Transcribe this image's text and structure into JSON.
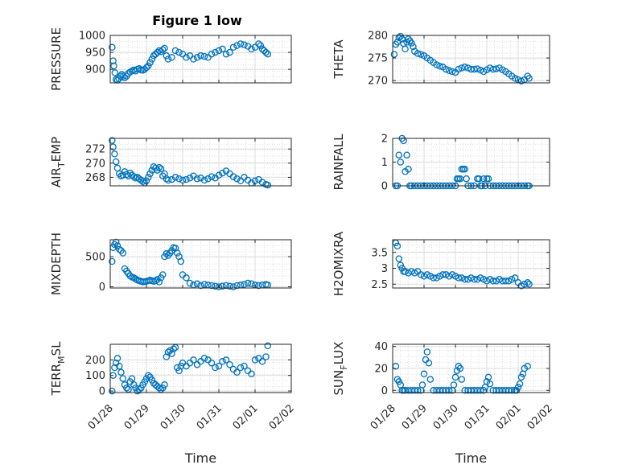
{
  "figure": {
    "title": "Figure 1 low"
  },
  "chart_data": [
    {
      "type": "scatter",
      "title": "Figure 1 low",
      "ylabel": "PRESSURE",
      "xlabel": "",
      "ylim": [
        860,
        1000
      ],
      "yticks": [
        900,
        950,
        1000
      ],
      "xlim": [
        0,
        5
      ],
      "xtick_labels": [],
      "grid": true,
      "marker": "open-circle",
      "color": "#0072BD",
      "x": [
        0.05,
        0.08,
        0.1,
        0.13,
        0.16,
        0.2,
        0.24,
        0.28,
        0.32,
        0.36,
        0.4,
        0.45,
        0.5,
        0.55,
        0.6,
        0.65,
        0.7,
        0.75,
        0.8,
        0.85,
        0.9,
        0.95,
        1.0,
        1.05,
        1.1,
        1.15,
        1.2,
        1.25,
        1.3,
        1.35,
        1.4,
        1.45,
        1.5,
        1.55,
        1.6,
        1.7,
        1.8,
        1.9,
        2.0,
        2.1,
        2.2,
        2.3,
        2.4,
        2.5,
        2.6,
        2.7,
        2.8,
        2.9,
        3.0,
        3.1,
        3.2,
        3.3,
        3.4,
        3.5,
        3.6,
        3.7,
        3.8,
        3.9,
        4.0,
        4.1,
        4.15,
        4.2,
        4.25,
        4.3,
        4.35
      ],
      "y": [
        965,
        925,
        910,
        890,
        870,
        868,
        872,
        880,
        885,
        880,
        875,
        880,
        888,
        892,
        895,
        898,
        895,
        900,
        902,
        898,
        897,
        900,
        905,
        910,
        920,
        930,
        940,
        945,
        950,
        955,
        952,
        958,
        962,
        940,
        930,
        935,
        955,
        950,
        945,
        935,
        940,
        930,
        935,
        940,
        938,
        935,
        945,
        950,
        955,
        960,
        945,
        950,
        965,
        970,
        975,
        972,
        968,
        960,
        965,
        975,
        970,
        960,
        955,
        950,
        945
      ]
    },
    {
      "type": "scatter",
      "ylabel": "THETA",
      "xlabel": "",
      "ylim": [
        269.5,
        280
      ],
      "yticks": [
        270,
        275,
        280
      ],
      "xlim": [
        0,
        5
      ],
      "xtick_labels": [],
      "grid": true,
      "marker": "open-circle",
      "color": "#0072BD",
      "x": [
        0.05,
        0.1,
        0.15,
        0.2,
        0.25,
        0.3,
        0.35,
        0.4,
        0.45,
        0.5,
        0.55,
        0.6,
        0.65,
        0.7,
        0.8,
        0.9,
        1.0,
        1.1,
        1.2,
        1.3,
        1.4,
        1.5,
        1.6,
        1.7,
        1.8,
        1.9,
        2.0,
        2.1,
        2.2,
        2.3,
        2.4,
        2.5,
        2.6,
        2.7,
        2.8,
        2.9,
        3.0,
        3.1,
        3.2,
        3.3,
        3.4,
        3.5,
        3.6,
        3.7,
        3.8,
        3.9,
        4.0,
        4.1,
        4.2,
        4.3,
        4.35
      ],
      "y": [
        275.8,
        278,
        278.5,
        279.5,
        279.8,
        279.2,
        278.2,
        277,
        278.5,
        279.2,
        278.8,
        278.3,
        277.5,
        276.5,
        276,
        275.8,
        275.5,
        275,
        274.5,
        274,
        273.5,
        273.2,
        273,
        272.5,
        272.2,
        272,
        271.8,
        272.5,
        272.8,
        273,
        272.8,
        272.5,
        272.5,
        272.6,
        272.3,
        272,
        272.4,
        272.8,
        272.5,
        272.6,
        272.8,
        272.4,
        272,
        271.5,
        271,
        270.5,
        270.2,
        269.9,
        270.2,
        271,
        270.5
      ]
    },
    {
      "type": "scatter",
      "ylabel": "AIR_TEMP",
      "xlabel": "",
      "ylim": [
        266.8,
        273.5
      ],
      "yticks": [
        268,
        270,
        272
      ],
      "xlim": [
        0,
        5
      ],
      "xtick_labels": [],
      "grid": true,
      "marker": "open-circle",
      "color": "#0072BD",
      "x": [
        0.05,
        0.08,
        0.12,
        0.16,
        0.2,
        0.25,
        0.3,
        0.35,
        0.4,
        0.45,
        0.5,
        0.55,
        0.6,
        0.65,
        0.7,
        0.75,
        0.8,
        0.85,
        0.9,
        0.95,
        1.0,
        1.05,
        1.1,
        1.15,
        1.2,
        1.25,
        1.3,
        1.35,
        1.4,
        1.45,
        1.5,
        1.55,
        1.6,
        1.7,
        1.8,
        1.9,
        2.0,
        2.1,
        2.2,
        2.3,
        2.4,
        2.5,
        2.6,
        2.7,
        2.8,
        2.9,
        3.0,
        3.1,
        3.2,
        3.3,
        3.4,
        3.5,
        3.6,
        3.7,
        3.8,
        3.9,
        4.0,
        4.1,
        4.2,
        4.3,
        4.35
      ],
      "y": [
        273.2,
        272.3,
        271.3,
        270.2,
        269.3,
        268.5,
        268.2,
        268.3,
        268.8,
        268.4,
        268.2,
        268.6,
        268.3,
        268.1,
        267.9,
        268.0,
        267.8,
        267.6,
        267.4,
        267.2,
        267.5,
        268.0,
        268.5,
        269.0,
        269.5,
        269.3,
        269.0,
        269.4,
        269.2,
        268.2,
        268.5,
        267.8,
        267.6,
        267.7,
        268.0,
        267.8,
        267.6,
        267.7,
        267.9,
        268.2,
        267.8,
        267.9,
        267.6,
        267.8,
        268.1,
        267.9,
        268.3,
        268.6,
        268.9,
        268.5,
        268.1,
        267.8,
        267.5,
        268.0,
        267.6,
        267.2,
        267.5,
        267.7,
        267.3,
        267.0,
        266.9
      ]
    },
    {
      "type": "scatter",
      "ylabel": "RAINFALL",
      "xlabel": "",
      "ylim": [
        0,
        2
      ],
      "yticks": [
        0,
        1,
        2
      ],
      "xlim": [
        0,
        5
      ],
      "xtick_labels": [],
      "grid": true,
      "marker": "open-circle",
      "color": "#0072BD",
      "x": [
        0.1,
        0.15,
        0.2,
        0.25,
        0.3,
        0.35,
        0.4,
        0.45,
        0.5,
        0.55,
        0.6,
        0.7,
        0.8,
        0.9,
        1.0,
        1.1,
        1.2,
        1.3,
        1.4,
        1.5,
        1.6,
        1.7,
        1.8,
        1.9,
        2.0,
        2.05,
        2.1,
        2.15,
        2.2,
        2.25,
        2.3,
        2.35,
        2.4,
        2.5,
        2.6,
        2.7,
        2.75,
        2.8,
        2.85,
        2.9,
        2.95,
        3.0,
        3.05,
        3.1,
        3.2,
        3.3,
        3.4,
        3.5,
        3.6,
        3.7,
        3.8,
        3.9,
        4.0,
        4.1,
        4.2,
        4.3,
        4.35
      ],
      "y": [
        0,
        0,
        1.3,
        1,
        2,
        1.9,
        0.6,
        1.3,
        0.7,
        0,
        0,
        0,
        0,
        0,
        0,
        0,
        0,
        0,
        0,
        0,
        0,
        0,
        0,
        0,
        0,
        0.3,
        0.3,
        0.3,
        0.7,
        0.7,
        0.7,
        0.3,
        0,
        0,
        0,
        0.3,
        0.3,
        0,
        0,
        0.3,
        0,
        0.3,
        0.3,
        0,
        0,
        0,
        0,
        0,
        0,
        0,
        0,
        0,
        0,
        0,
        0,
        0,
        0
      ]
    },
    {
      "type": "scatter",
      "ylabel": "MIXDEPTH",
      "xlabel": "",
      "ylim": [
        -20,
        780
      ],
      "yticks": [
        0,
        500
      ],
      "xlim": [
        0,
        5
      ],
      "xtick_labels": [],
      "grid": true,
      "marker": "open-circle",
      "color": "#0072BD",
      "x": [
        0.05,
        0.08,
        0.12,
        0.16,
        0.2,
        0.25,
        0.3,
        0.35,
        0.4,
        0.45,
        0.5,
        0.55,
        0.6,
        0.65,
        0.7,
        0.75,
        0.8,
        0.85,
        0.9,
        0.95,
        1.0,
        1.05,
        1.1,
        1.15,
        1.2,
        1.25,
        1.3,
        1.35,
        1.4,
        1.45,
        1.5,
        1.55,
        1.6,
        1.65,
        1.7,
        1.75,
        1.8,
        1.85,
        1.9,
        1.95,
        2.0,
        2.1,
        2.2,
        2.3,
        2.4,
        2.5,
        2.6,
        2.7,
        2.8,
        2.9,
        3.0,
        3.1,
        3.2,
        3.3,
        3.4,
        3.5,
        3.6,
        3.7,
        3.8,
        3.9,
        4.0,
        4.1,
        4.2,
        4.3,
        4.35
      ],
      "y": [
        420,
        650,
        700,
        740,
        680,
        620,
        600,
        560,
        300,
        260,
        220,
        180,
        160,
        150,
        130,
        110,
        100,
        90,
        80,
        85,
        90,
        100,
        110,
        100,
        90,
        100,
        120,
        80,
        150,
        200,
        500,
        550,
        520,
        560,
        600,
        650,
        640,
        560,
        500,
        420,
        200,
        150,
        60,
        30,
        50,
        20,
        40,
        30,
        20,
        10,
        0,
        10,
        20,
        10,
        0,
        20,
        30,
        40,
        60,
        50,
        30,
        20,
        30,
        40,
        30
      ]
    },
    {
      "type": "scatter",
      "ylabel": "H2OMIXRA",
      "xlabel": "",
      "ylim": [
        2.38,
        3.9
      ],
      "yticks": [
        2.5,
        3,
        3.5
      ],
      "xlim": [
        0,
        5
      ],
      "xtick_labels": [],
      "grid": true,
      "marker": "open-circle",
      "color": "#0072BD",
      "x": [
        0.1,
        0.15,
        0.2,
        0.25,
        0.3,
        0.35,
        0.4,
        0.5,
        0.6,
        0.7,
        0.8,
        0.9,
        1.0,
        1.1,
        1.2,
        1.3,
        1.4,
        1.5,
        1.6,
        1.7,
        1.8,
        1.9,
        2.0,
        2.1,
        2.2,
        2.3,
        2.4,
        2.5,
        2.6,
        2.7,
        2.8,
        2.9,
        3.0,
        3.1,
        3.2,
        3.3,
        3.4,
        3.5,
        3.6,
        3.7,
        3.8,
        3.9,
        4.0,
        4.1,
        4.2,
        4.3,
        4.35
      ],
      "y": [
        3.8,
        3.7,
        3.3,
        3.1,
        3.0,
        2.9,
        2.9,
        2.85,
        2.9,
        2.85,
        2.9,
        2.8,
        2.75,
        2.8,
        2.75,
        2.7,
        2.7,
        2.75,
        2.8,
        2.8,
        2.75,
        2.8,
        2.75,
        2.7,
        2.7,
        2.65,
        2.65,
        2.7,
        2.65,
        2.65,
        2.7,
        2.65,
        2.6,
        2.65,
        2.6,
        2.6,
        2.65,
        2.6,
        2.6,
        2.6,
        2.65,
        2.7,
        2.55,
        2.45,
        2.5,
        2.55,
        2.5
      ]
    },
    {
      "type": "scatter",
      "ylabel": "TERR_MSL",
      "xlabel": "Time",
      "ylim": [
        -10,
        300
      ],
      "yticks": [
        0,
        100,
        200
      ],
      "xlim": [
        0,
        5
      ],
      "xtick_labels": [
        "01/28",
        "01/29",
        "01/30",
        "01/31",
        "02/01",
        "02/02"
      ],
      "grid": true,
      "marker": "open-circle",
      "color": "#0072BD",
      "x": [
        0.05,
        0.08,
        0.12,
        0.16,
        0.2,
        0.25,
        0.3,
        0.35,
        0.4,
        0.45,
        0.5,
        0.55,
        0.6,
        0.65,
        0.7,
        0.75,
        0.8,
        0.85,
        0.9,
        0.95,
        1.0,
        1.05,
        1.1,
        1.15,
        1.2,
        1.25,
        1.3,
        1.35,
        1.4,
        1.45,
        1.5,
        1.55,
        1.6,
        1.65,
        1.7,
        1.75,
        1.8,
        1.85,
        1.9,
        1.95,
        2.0,
        2.1,
        2.2,
        2.3,
        2.4,
        2.5,
        2.6,
        2.7,
        2.8,
        2.9,
        3.0,
        3.1,
        3.2,
        3.3,
        3.4,
        3.5,
        3.6,
        3.7,
        3.8,
        3.9,
        4.0,
        4.1,
        4.2,
        4.3,
        4.35
      ],
      "y": [
        0,
        100,
        150,
        180,
        210,
        160,
        120,
        80,
        40,
        20,
        10,
        60,
        80,
        40,
        20,
        0,
        10,
        20,
        40,
        60,
        80,
        100,
        90,
        70,
        50,
        40,
        30,
        20,
        10,
        20,
        40,
        220,
        250,
        260,
        240,
        270,
        280,
        150,
        130,
        160,
        180,
        160,
        180,
        200,
        170,
        190,
        210,
        200,
        180,
        150,
        160,
        190,
        200,
        170,
        140,
        120,
        150,
        160,
        130,
        110,
        200,
        210,
        190,
        220,
        290
      ]
    },
    {
      "type": "scatter",
      "ylabel": "SUN_FLUX",
      "xlabel": "Time",
      "ylim": [
        -2,
        42
      ],
      "yticks": [
        0,
        20,
        40
      ],
      "xlim": [
        0,
        5
      ],
      "xtick_labels": [
        "01/28",
        "01/29",
        "01/30",
        "01/31",
        "02/01",
        "02/02"
      ],
      "grid": true,
      "marker": "open-circle",
      "color": "#0072BD",
      "x": [
        0.1,
        0.15,
        0.2,
        0.25,
        0.3,
        0.35,
        0.4,
        0.5,
        0.6,
        0.7,
        0.8,
        0.9,
        0.95,
        1.0,
        1.05,
        1.1,
        1.15,
        1.2,
        1.3,
        1.4,
        1.5,
        1.6,
        1.7,
        1.8,
        1.9,
        1.95,
        2.0,
        2.05,
        2.1,
        2.15,
        2.2,
        2.3,
        2.4,
        2.5,
        2.6,
        2.7,
        2.8,
        2.9,
        2.95,
        3.0,
        3.05,
        3.1,
        3.2,
        3.3,
        3.4,
        3.5,
        3.6,
        3.7,
        3.8,
        3.9,
        3.95,
        4.0,
        4.05,
        4.1,
        4.15,
        4.2,
        4.3
      ],
      "y": [
        22,
        10,
        8,
        5,
        0,
        0,
        0,
        0,
        0,
        0,
        0,
        0,
        5,
        15,
        28,
        35,
        25,
        10,
        0,
        0,
        0,
        0,
        0,
        0,
        0,
        5,
        12,
        18,
        22,
        20,
        10,
        0,
        0,
        0,
        0,
        0,
        0,
        0,
        3,
        8,
        12,
        6,
        0,
        0,
        0,
        0,
        0,
        0,
        0,
        0,
        0,
        3,
        6,
        12,
        15,
        20,
        22
      ]
    }
  ]
}
